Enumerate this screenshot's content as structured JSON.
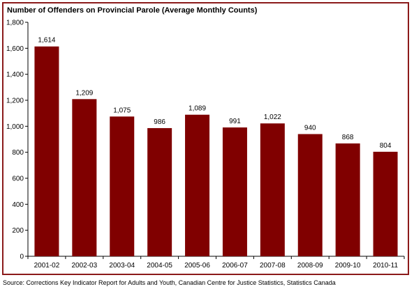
{
  "chart_data": {
    "type": "bar",
    "title": "Number of Offenders on Provincial Parole (Average Monthly Counts)",
    "xlabel": "",
    "ylabel": "",
    "categories": [
      "2001-02",
      "2002-03",
      "2003-04",
      "2004-05",
      "2005-06",
      "2006-07",
      "2007-08",
      "2008-09",
      "2009-10",
      "2010-11"
    ],
    "values": [
      1614,
      1209,
      1075,
      986,
      1089,
      991,
      1022,
      940,
      868,
      804
    ],
    "data_labels": [
      "1,614",
      "1,209",
      "1,075",
      "986",
      "1,089",
      "991",
      "1,022",
      "940",
      "868",
      "804"
    ],
    "ylim": [
      0,
      1800
    ],
    "yticks": [
      0,
      200,
      400,
      600,
      800,
      1000,
      1200,
      1400,
      1600,
      1800
    ],
    "ytick_labels": [
      "0",
      "200",
      "400",
      "600",
      "800",
      "1,000",
      "1,200",
      "1,400",
      "1,600",
      "1,800"
    ],
    "grid": false,
    "legend": "none",
    "bar_color": "#800000",
    "frame_color": "#8b1a1a"
  },
  "source": "Source: Corrections Key Indicator Report for Adults and Youth, Canadian Centre for Justice Statistics, Statistics Canada"
}
